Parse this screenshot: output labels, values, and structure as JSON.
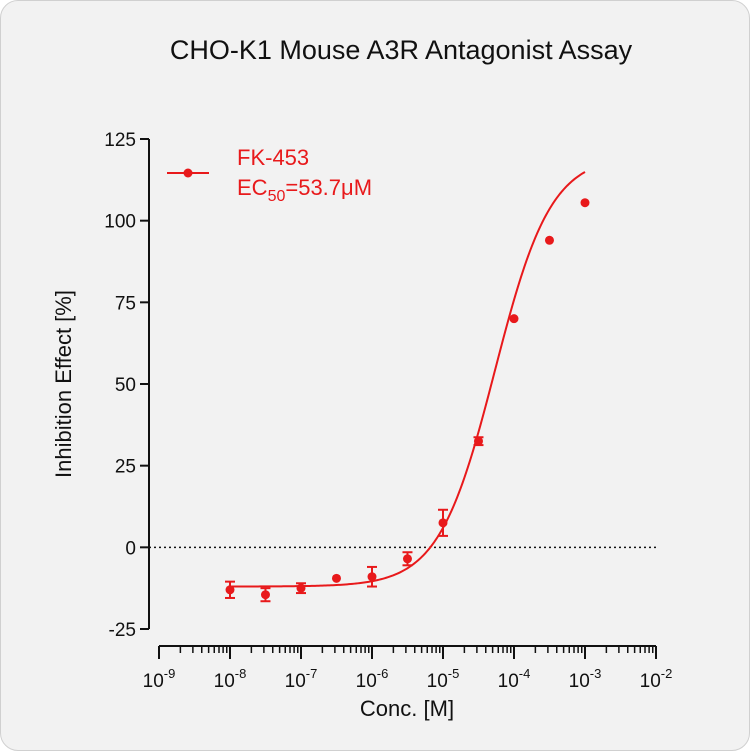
{
  "chart_data": {
    "type": "scatter",
    "title": "CHO-K1 Mouse A3R Antagonist Assay",
    "xlabel": "Conc. [M]",
    "ylabel": "Inhibition Effect [%]",
    "x_scale": "log",
    "xlim": [
      1e-09,
      0.01
    ],
    "ylim": [
      -25,
      125
    ],
    "x_ticks": [
      {
        "value": 1e-09,
        "base": "10",
        "exp": "-9"
      },
      {
        "value": 1e-08,
        "base": "10",
        "exp": "-8"
      },
      {
        "value": 1e-07,
        "base": "10",
        "exp": "-7"
      },
      {
        "value": 1e-06,
        "base": "10",
        "exp": "-6"
      },
      {
        "value": 1e-05,
        "base": "10",
        "exp": "-5"
      },
      {
        "value": 0.0001,
        "base": "10",
        "exp": "-4"
      },
      {
        "value": 0.001,
        "base": "10",
        "exp": "-3"
      },
      {
        "value": 0.01,
        "base": "10",
        "exp": "-2"
      }
    ],
    "y_ticks": [
      {
        "value": 125,
        "label": "125"
      },
      {
        "value": 100,
        "label": "100"
      },
      {
        "value": 75,
        "label": "75"
      },
      {
        "value": 50,
        "label": "50"
      },
      {
        "value": 25,
        "label": "25"
      },
      {
        "value": 0,
        "label": "0"
      },
      {
        "value": -25,
        "label": "-25"
      }
    ],
    "reference_line": {
      "y": 0,
      "style": "dotted"
    },
    "grid": false,
    "legend_position": "top-left",
    "series": [
      {
        "name": "FK-453",
        "annotation_prefix": "EC",
        "annotation_subscript": "50",
        "annotation_value": "=53.7μM",
        "color": "#e8191b",
        "points": [
          {
            "x": 1e-08,
            "y": -13.0,
            "err": 2.5
          },
          {
            "x": 3.16e-08,
            "y": -14.5,
            "err": 2.0
          },
          {
            "x": 1e-07,
            "y": -12.5,
            "err": 1.5
          },
          {
            "x": 3.16e-07,
            "y": -9.5,
            "err": 0.5
          },
          {
            "x": 1e-06,
            "y": -9.0,
            "err": 3.0
          },
          {
            "x": 3.16e-06,
            "y": -3.5,
            "err": 2.0
          },
          {
            "x": 1e-05,
            "y": 7.5,
            "err": 4.0
          },
          {
            "x": 3.16e-05,
            "y": 32.5,
            "err": 1.2
          },
          {
            "x": 0.0001,
            "y": 70.0,
            "err": 0.5
          },
          {
            "x": 0.000316,
            "y": 94.0,
            "err": 0.5
          },
          {
            "x": 0.001,
            "y": 105.5,
            "err": 0.5
          }
        ],
        "fit": {
          "bottom": -12,
          "top": 120,
          "ec50": 5.37e-05,
          "hill": 1.1
        }
      }
    ]
  }
}
